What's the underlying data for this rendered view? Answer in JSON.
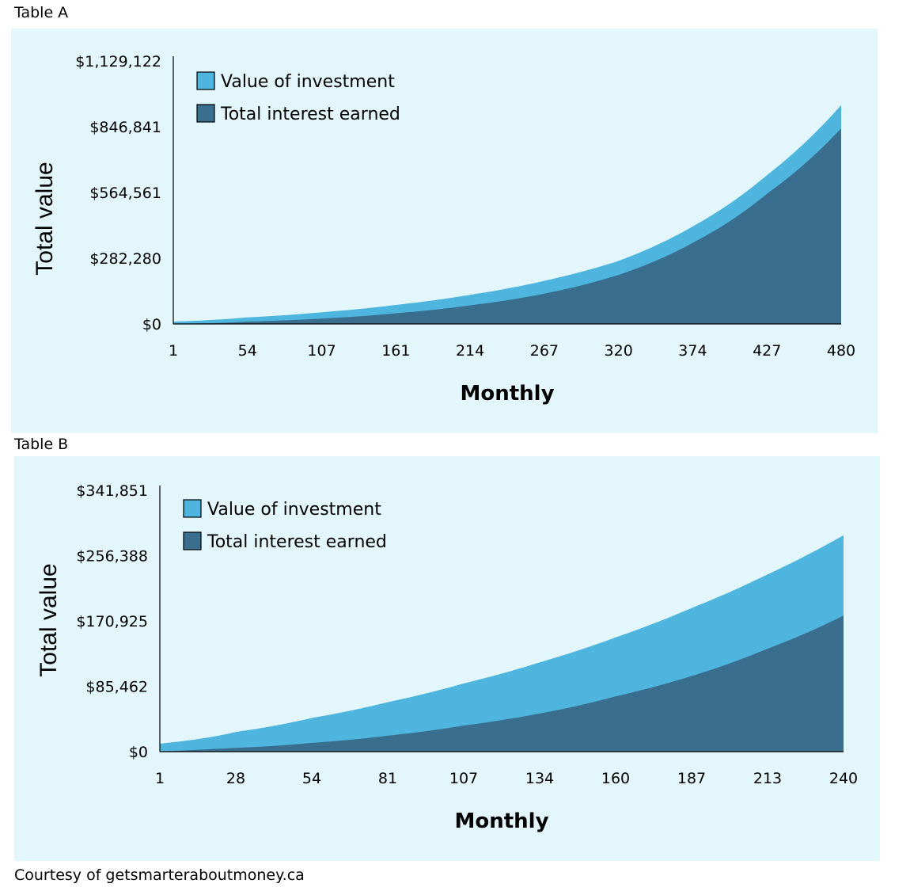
{
  "footer": {
    "courtesy": "Courtesy of getsmarteraboutmoney.ca"
  },
  "colors": {
    "panel_bg": "#e3f6fb",
    "investment": "#4db5de",
    "interest": "#3a6e8f",
    "axis": "#000000"
  },
  "chart_data": [
    {
      "label": "Table A",
      "type": "area",
      "title": "",
      "xlabel": "Monthly",
      "ylabel": "Total value",
      "x_ticks": [
        "1",
        "54",
        "107",
        "161",
        "214",
        "267",
        "320",
        "374",
        "427",
        "480"
      ],
      "y_ticks": [
        "$0",
        "$282,280",
        "$564,561",
        "$846,841",
        "$1,129,122"
      ],
      "xlim": [
        1,
        480
      ],
      "ylim": [
        0,
        1129122
      ],
      "legend_position": "top-left",
      "series": [
        {
          "name": "Value of investment",
          "color": "#4db5de",
          "x": [
            1,
            54,
            107,
            161,
            214,
            267,
            320,
            374,
            427,
            480
          ],
          "values": [
            10000,
            28000,
            50000,
            82000,
            125000,
            185000,
            270000,
            420000,
            640000,
            940000
          ]
        },
        {
          "name": "Total interest earned",
          "color": "#3a6e8f",
          "x": [
            1,
            54,
            107,
            161,
            214,
            267,
            320,
            374,
            427,
            480
          ],
          "values": [
            1000,
            10000,
            23000,
            46000,
            80000,
            130000,
            210000,
            350000,
            560000,
            840000
          ]
        }
      ]
    },
    {
      "label": "Table B",
      "type": "area",
      "title": "",
      "xlabel": "Monthly",
      "ylabel": "Total value",
      "x_ticks": [
        "1",
        "28",
        "54",
        "81",
        "107",
        "134",
        "160",
        "187",
        "213",
        "240"
      ],
      "y_ticks": [
        "$0",
        "$85,462",
        "$170,925",
        "$256,388",
        "$341,851"
      ],
      "xlim": [
        1,
        240
      ],
      "ylim": [
        0,
        341851
      ],
      "legend_position": "top-left",
      "series": [
        {
          "name": "Value of investment",
          "color": "#4db5de",
          "x": [
            1,
            28,
            54,
            81,
            107,
            134,
            160,
            187,
            213,
            240
          ],
          "values": [
            10500,
            26000,
            44000,
            65000,
            89000,
            117000,
            149000,
            188000,
            231000,
            283000
          ]
        },
        {
          "name": "Total interest earned",
          "color": "#3a6e8f",
          "x": [
            1,
            28,
            54,
            81,
            107,
            134,
            160,
            187,
            213,
            240
          ],
          "values": [
            0,
            5000,
            11500,
            21000,
            34000,
            50000,
            72000,
            99000,
            134000,
            178000
          ]
        }
      ]
    }
  ]
}
